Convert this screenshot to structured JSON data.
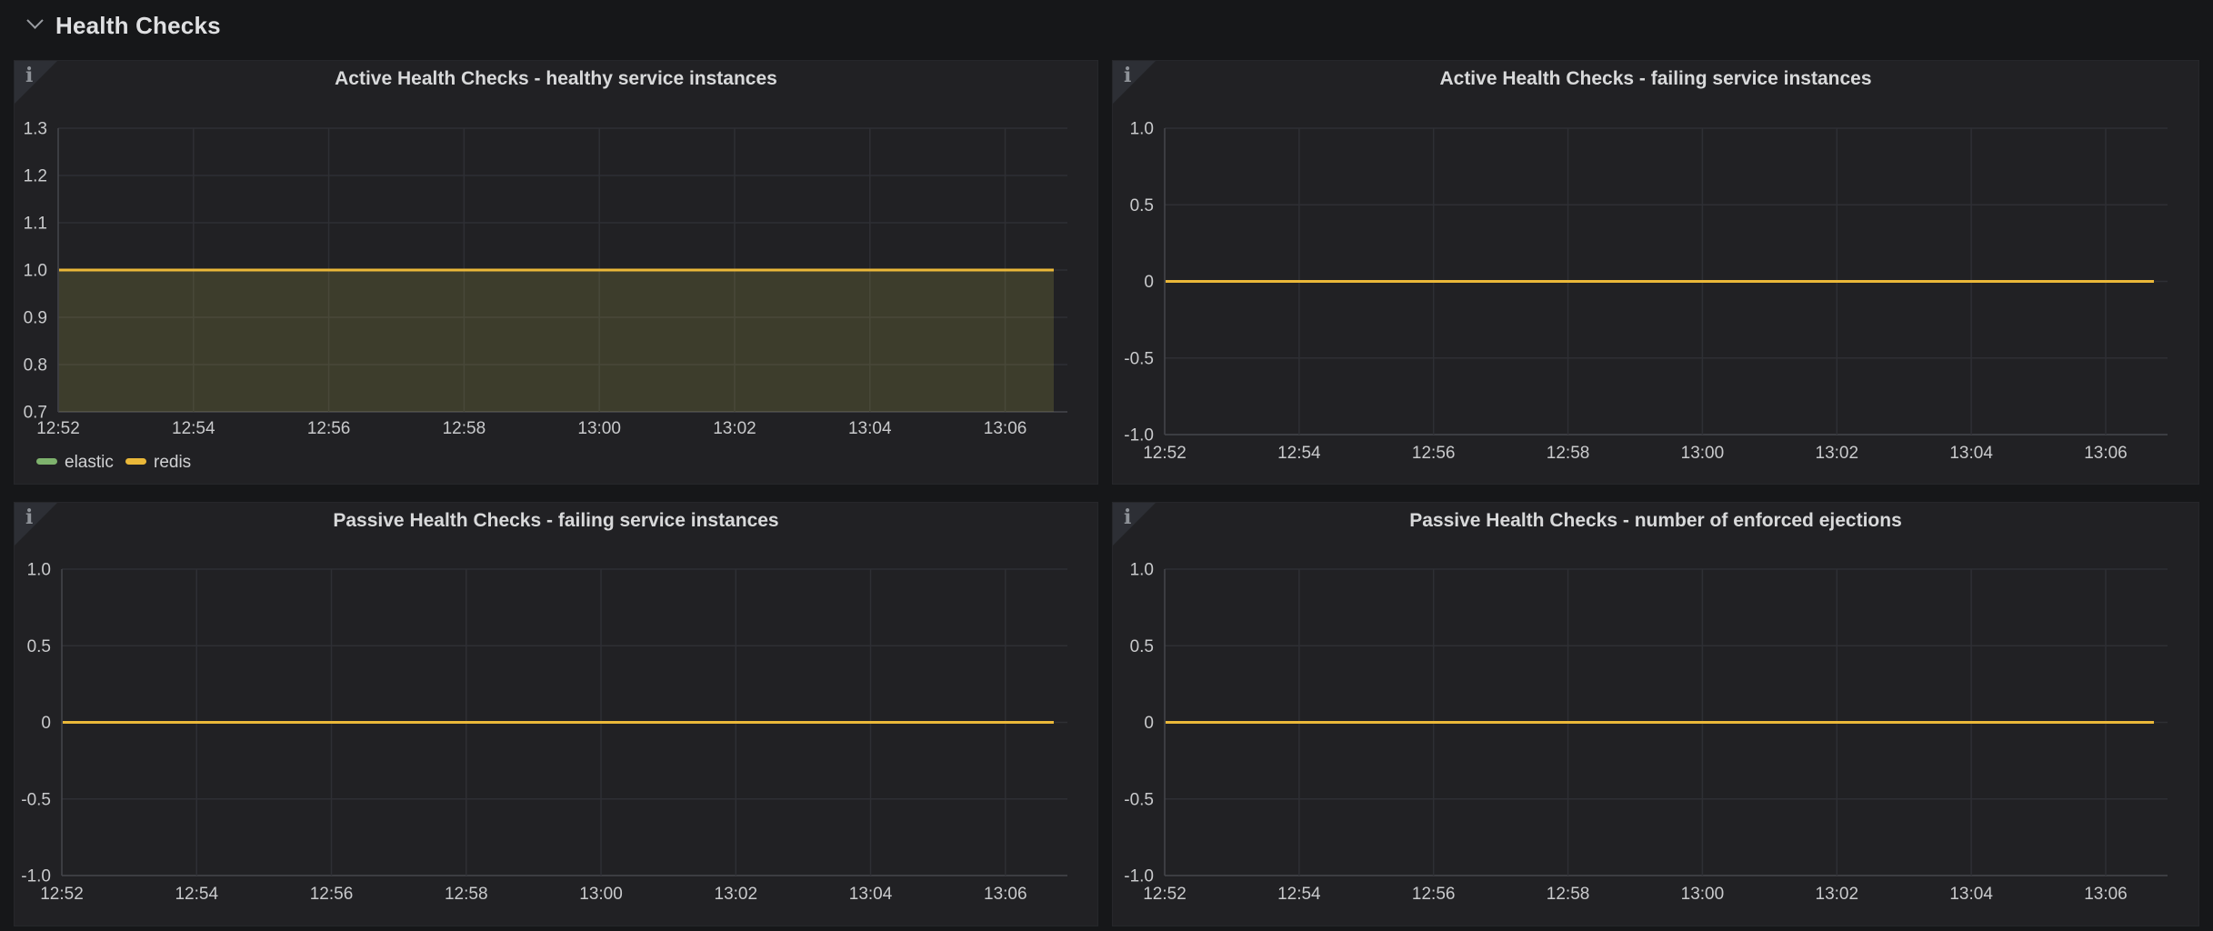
{
  "page": {
    "row_title": "Health Checks"
  },
  "icons": {
    "info_glyph": "i",
    "collapse_chevron": "chevron-down"
  },
  "colors": {
    "page_bg": "#161719",
    "panel_bg": "#212124",
    "accent_yellow": "#EAB839",
    "accent_green": "#7EB26D"
  },
  "chart_data": [
    {
      "type": "line",
      "title": "Active Health Checks - healthy service instances",
      "x_ticks": [
        "12:52",
        "12:54",
        "12:56",
        "12:58",
        "13:00",
        "13:02",
        "13:04",
        "13:06"
      ],
      "x_range": [
        "12:52",
        "13:07"
      ],
      "y_ticks": [
        "1.3",
        "1.2",
        "1.1",
        "1.0",
        "0.9",
        "0.8",
        "0.7"
      ],
      "ylim": [
        0.7,
        1.3
      ],
      "grid": true,
      "fill": true,
      "show_legend": true,
      "legend_position": "bottom-left",
      "series": [
        {
          "name": "elastic",
          "color": "#7EB26D",
          "constant_value": 1.0
        },
        {
          "name": "redis",
          "color": "#EAB839",
          "constant_value": 1.0
        }
      ]
    },
    {
      "type": "line",
      "title": "Active Health Checks - failing service instances",
      "x_ticks": [
        "12:52",
        "12:54",
        "12:56",
        "12:58",
        "13:00",
        "13:02",
        "13:04",
        "13:06"
      ],
      "x_range": [
        "12:52",
        "13:07"
      ],
      "y_ticks": [
        "1.0",
        "0.5",
        "0",
        "-0.5",
        "-1.0"
      ],
      "ylim": [
        -1.0,
        1.0
      ],
      "grid": true,
      "fill": false,
      "show_legend": false,
      "series": [
        {
          "name": null,
          "color": "#EAB839",
          "constant_value": 0
        }
      ]
    },
    {
      "type": "line",
      "title": "Passive Health Checks - failing service instances",
      "x_ticks": [
        "12:52",
        "12:54",
        "12:56",
        "12:58",
        "13:00",
        "13:02",
        "13:04",
        "13:06"
      ],
      "x_range": [
        "12:52",
        "13:07"
      ],
      "y_ticks": [
        "1.0",
        "0.5",
        "0",
        "-0.5",
        "-1.0"
      ],
      "ylim": [
        -1.0,
        1.0
      ],
      "grid": true,
      "fill": false,
      "show_legend": false,
      "series": [
        {
          "name": null,
          "color": "#EAB839",
          "constant_value": 0
        }
      ]
    },
    {
      "type": "line",
      "title": "Passive Health Checks - number of enforced ejections",
      "x_ticks": [
        "12:52",
        "12:54",
        "12:56",
        "12:58",
        "13:00",
        "13:02",
        "13:04",
        "13:06"
      ],
      "x_range": [
        "12:52",
        "13:07"
      ],
      "y_ticks": [
        "1.0",
        "0.5",
        "0",
        "-0.5",
        "-1.0"
      ],
      "ylim": [
        -1.0,
        1.0
      ],
      "grid": true,
      "fill": false,
      "show_legend": false,
      "series": [
        {
          "name": null,
          "color": "#EAB839",
          "constant_value": 0
        }
      ]
    }
  ]
}
